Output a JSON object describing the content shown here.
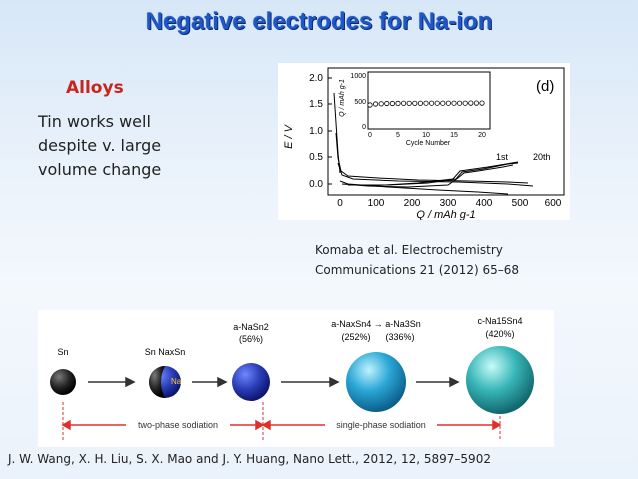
{
  "slide": {
    "title": "Negative electrodes for Na-ion",
    "section_label": "Alloys",
    "body_lines": [
      "Tin works well",
      "despite v. large",
      "volume change"
    ],
    "reference_1_lines": [
      "Komaba et al. Electrochemistry",
      "Communications 21 (2012) 65–68"
    ],
    "reference_2": "J. W. Wang, X. H. Liu, S. X. Mao and J. Y. Huang, Nano Lett., 2012, 12, 5897–5902"
  },
  "figure_voltage": {
    "panel_label": "(d)",
    "y_axis_label": "E / V",
    "x_axis_label": "Q / mAh g-1",
    "y_ticks": [
      "2.0",
      "1.5",
      "1.0",
      "0.5",
      "0.0"
    ],
    "x_ticks": [
      "0",
      "100",
      "200",
      "300",
      "400",
      "500",
      "600"
    ],
    "cycle_labels": [
      "1st",
      "20th"
    ],
    "inset": {
      "y_axis_label": "Q / mAh g-1",
      "x_axis_label": "Cycle Number",
      "y_ticks": [
        "1000",
        "500",
        "0"
      ],
      "x_ticks": [
        "0",
        "5",
        "10",
        "15",
        "20"
      ],
      "capacity_values": [
        470,
        490,
        495,
        500,
        500,
        502,
        503,
        503,
        504,
        504,
        505,
        505,
        505,
        505,
        506,
        506,
        506,
        506,
        507,
        507,
        507
      ]
    }
  },
  "figure_sodiation": {
    "phase_labels": [
      "Sn",
      "Sn  NaxSn",
      "a-NaSn2",
      "a-NaxSn4 → a-Na3Sn",
      "c-Na15Sn4"
    ],
    "expansion_labels": [
      "(56%)",
      "(252%)",
      "(336%)",
      "(420%)"
    ],
    "inner_label": "Na",
    "region_labels": [
      "two-phase sodiation",
      "single-phase sodiation"
    ],
    "colors": {
      "sn": "#1e1e1e",
      "nasn2": "#2b3fb8",
      "na3sn": "#2aa7d6",
      "na15sn4": "#39b7b9",
      "arrow": "#e0302b"
    }
  }
}
